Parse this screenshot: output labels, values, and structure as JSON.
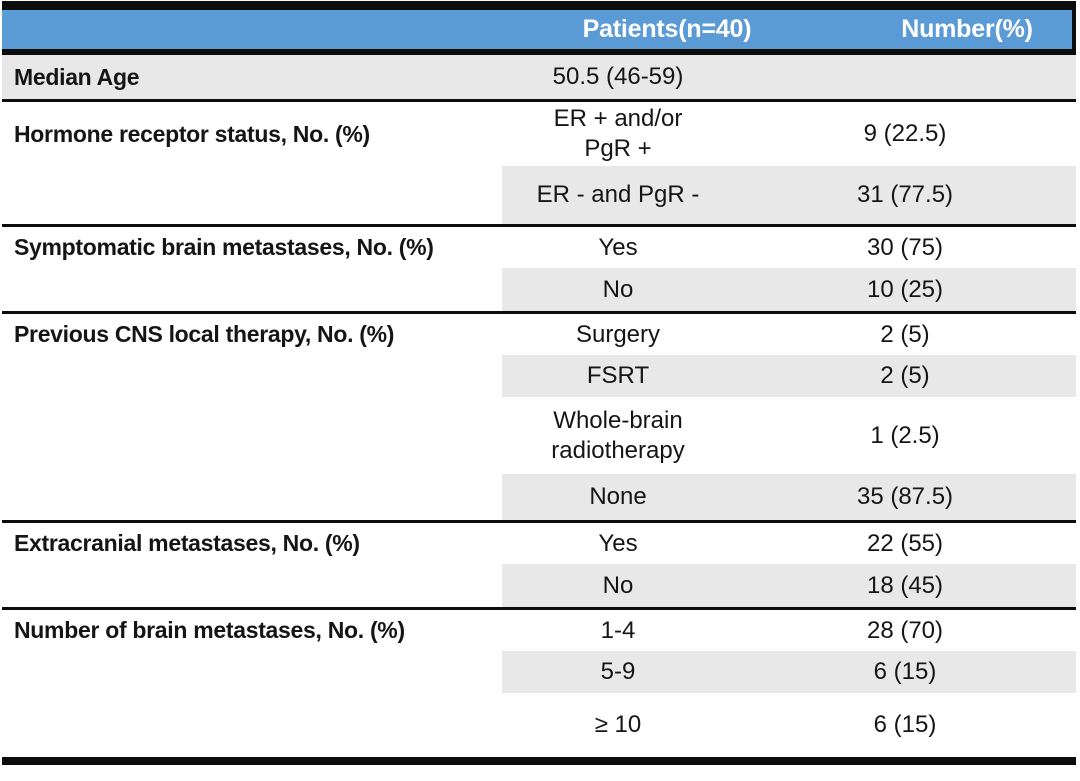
{
  "header": {
    "patients": "Patients(n=40)",
    "number": "Number(%)"
  },
  "colors": {
    "header_bg": "#5B9BD5",
    "header_text": "#FFFFFF",
    "row_stripe": "#E9E8E8",
    "rule": "#0D0D0D"
  },
  "sections": [
    {
      "label": "Median Age",
      "rows": [
        {
          "category": "50.5 (46-59)",
          "value": ""
        }
      ]
    },
    {
      "label": "Hormone receptor status, No. (%)",
      "rows": [
        {
          "category": "ER + and/or\nPgR +",
          "value": "9 (22.5)"
        },
        {
          "category": "ER - and PgR -",
          "value": "31 (77.5)"
        }
      ]
    },
    {
      "label": "Symptomatic brain metastases, No. (%)",
      "rows": [
        {
          "category": "Yes",
          "value": "30 (75)"
        },
        {
          "category": "No",
          "value": "10 (25)"
        }
      ]
    },
    {
      "label": "Previous CNS local therapy, No. (%)",
      "rows": [
        {
          "category": "Surgery",
          "value": "2 (5)"
        },
        {
          "category": "FSRT",
          "value": "2 (5)"
        },
        {
          "category": "Whole-brain\nradiotherapy",
          "value": "1 (2.5)"
        },
        {
          "category": "None",
          "value": "35 (87.5)"
        }
      ]
    },
    {
      "label": "Extracranial metastases, No. (%)",
      "rows": [
        {
          "category": "Yes",
          "value": "22 (55)"
        },
        {
          "category": "No",
          "value": "18 (45)"
        }
      ]
    },
    {
      "label": "Number of brain metastases, No. (%)",
      "rows": [
        {
          "category": "1-4",
          "value": "28 (70)"
        },
        {
          "category": "5-9",
          "value": "6 (15)"
        },
        {
          "category": "≥ 10",
          "value": "6 (15)"
        }
      ]
    }
  ]
}
